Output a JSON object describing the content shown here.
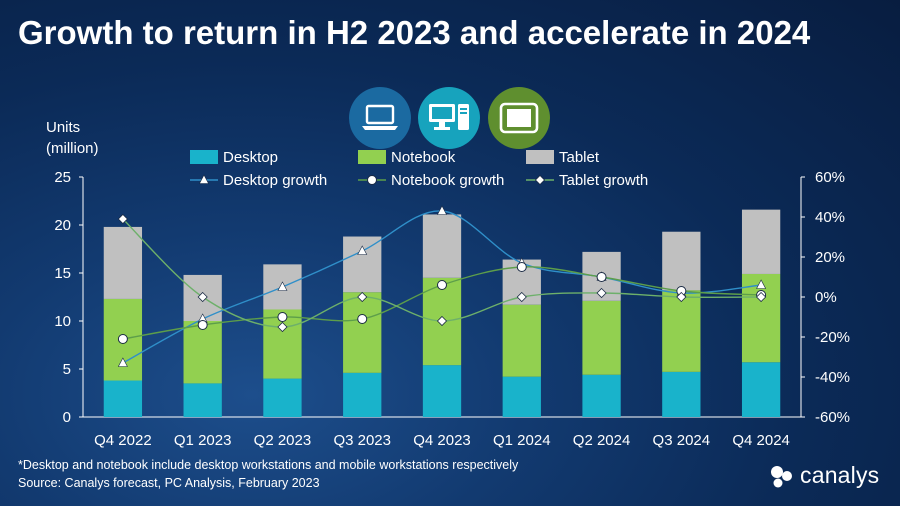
{
  "title": "Growth to return in H2 2023 and accelerate in 2024",
  "icons": [
    {
      "name": "laptop-icon",
      "color": "#1b6aa1"
    },
    {
      "name": "desktop-pc-icon",
      "color": "#17a3bd"
    },
    {
      "name": "tablet-icon",
      "color": "#5f8f2f"
    }
  ],
  "footnote": "*Desktop and notebook include desktop workstations and mobile workstations respectively",
  "source": "Source: Canalys forecast, PC Analysis, February 2023",
  "logo_text": "canalys",
  "chart_data": {
    "type": "bar",
    "stacked": true,
    "categories": [
      "Q4 2022",
      "Q1 2023",
      "Q2 2023",
      "Q3 2023",
      "Q4 2023",
      "Q1 2024",
      "Q2 2024",
      "Q3 2024",
      "Q4 2024"
    ],
    "ylabel_lines": [
      "Units",
      "(million)"
    ],
    "ylim": [
      0,
      25
    ],
    "yticks": [
      "0",
      "5",
      "10",
      "15",
      "20",
      "25"
    ],
    "y2lim": [
      -60,
      60
    ],
    "y2ticks": [
      "-60%",
      "-40%",
      "-20%",
      "0%",
      "20%",
      "40%",
      "60%"
    ],
    "legend_position": "top",
    "grid": false,
    "series": [
      {
        "name": "Desktop",
        "kind": "bar",
        "axis": "left",
        "color": "#19b3cb",
        "values": [
          3.8,
          3.5,
          4.0,
          4.6,
          5.4,
          4.2,
          4.4,
          4.7,
          5.7
        ]
      },
      {
        "name": "Notebook",
        "kind": "bar",
        "axis": "left",
        "color": "#92d050",
        "values": [
          8.5,
          6.5,
          7.2,
          8.4,
          9.1,
          7.5,
          7.7,
          8.5,
          9.2
        ]
      },
      {
        "name": "Tablet",
        "kind": "bar",
        "axis": "left",
        "color": "#c0c0c0",
        "values": [
          7.5,
          4.8,
          4.7,
          5.8,
          6.6,
          4.7,
          5.1,
          6.1,
          6.7
        ]
      },
      {
        "name": "Desktop growth",
        "kind": "line",
        "axis": "right",
        "marker": "triangle",
        "color": "#2f8fc9",
        "values": [
          -33,
          -11,
          5,
          23,
          43,
          17,
          10,
          2,
          6
        ]
      },
      {
        "name": "Notebook growth",
        "kind": "line",
        "axis": "right",
        "marker": "circle",
        "color": "#5d9e4a",
        "values": [
          -21,
          -14,
          -10,
          -11,
          6,
          15,
          10,
          3,
          1
        ]
      },
      {
        "name": "Tablet growth",
        "kind": "line",
        "axis": "right",
        "marker": "diamond",
        "color": "#6db06a",
        "values": [
          39,
          0,
          -15,
          0,
          -12,
          0,
          2,
          0,
          0
        ]
      }
    ]
  }
}
